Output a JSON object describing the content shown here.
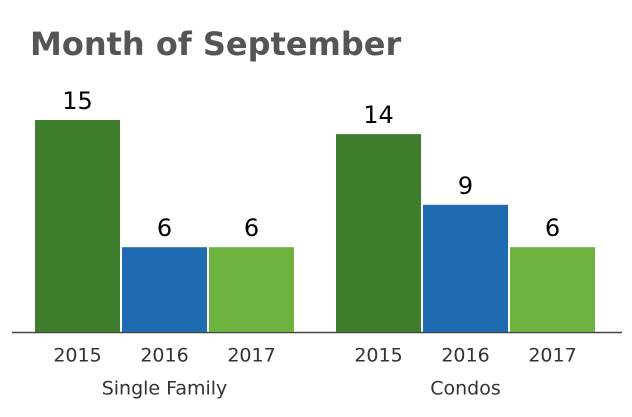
{
  "chart_data": {
    "type": "bar",
    "title": "Month of September",
    "categories": [
      "Single Family",
      "Condos"
    ],
    "series": [
      {
        "name": "2015",
        "color": "#3e7d2c",
        "values": [
          15,
          14
        ]
      },
      {
        "name": "2016",
        "color": "#1e6bb1",
        "values": [
          6,
          9
        ]
      },
      {
        "name": "2017",
        "color": "#6cb23c",
        "values": [
          6,
          6
        ]
      }
    ]
  }
}
